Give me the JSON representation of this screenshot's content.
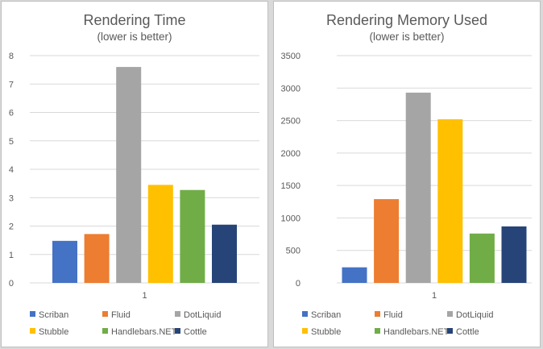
{
  "chart_data": [
    {
      "type": "bar",
      "title": "Rendering Time",
      "subtitle": "(lower is better)",
      "categories": [
        "1"
      ],
      "ylim": [
        0,
        8
      ],
      "yticks": [
        0,
        1,
        2,
        3,
        4,
        5,
        6,
        7,
        8
      ],
      "grid": true,
      "legend_position": "bottom",
      "series": [
        {
          "name": "Scriban",
          "color": "#4472c4",
          "values": [
            1.48
          ]
        },
        {
          "name": "Fluid",
          "color": "#ed7d31",
          "values": [
            1.72
          ]
        },
        {
          "name": "DotLiquid",
          "color": "#a5a5a5",
          "values": [
            7.6
          ]
        },
        {
          "name": "Stubble",
          "color": "#ffc000",
          "values": [
            3.45
          ]
        },
        {
          "name": "Handlebars.NET",
          "color": "#70ad47",
          "values": [
            3.27
          ]
        },
        {
          "name": "Cottle",
          "color": "#264478",
          "values": [
            2.05
          ]
        }
      ]
    },
    {
      "type": "bar",
      "title": "Rendering Memory Used",
      "subtitle": "(lower is better)",
      "categories": [
        "1"
      ],
      "ylim": [
        0,
        3500
      ],
      "yticks": [
        0,
        500,
        1000,
        1500,
        2000,
        2500,
        3000,
        3500
      ],
      "grid": true,
      "legend_position": "bottom",
      "series": [
        {
          "name": "Scriban",
          "color": "#4472c4",
          "values": [
            240
          ]
        },
        {
          "name": "Fluid",
          "color": "#ed7d31",
          "values": [
            1290
          ]
        },
        {
          "name": "DotLiquid",
          "color": "#a5a5a5",
          "values": [
            2930
          ]
        },
        {
          "name": "Stubble",
          "color": "#ffc000",
          "values": [
            2520
          ]
        },
        {
          "name": "Handlebars.NET",
          "color": "#70ad47",
          "values": [
            760
          ]
        },
        {
          "name": "Cottle",
          "color": "#264478",
          "values": [
            870
          ]
        }
      ]
    }
  ]
}
